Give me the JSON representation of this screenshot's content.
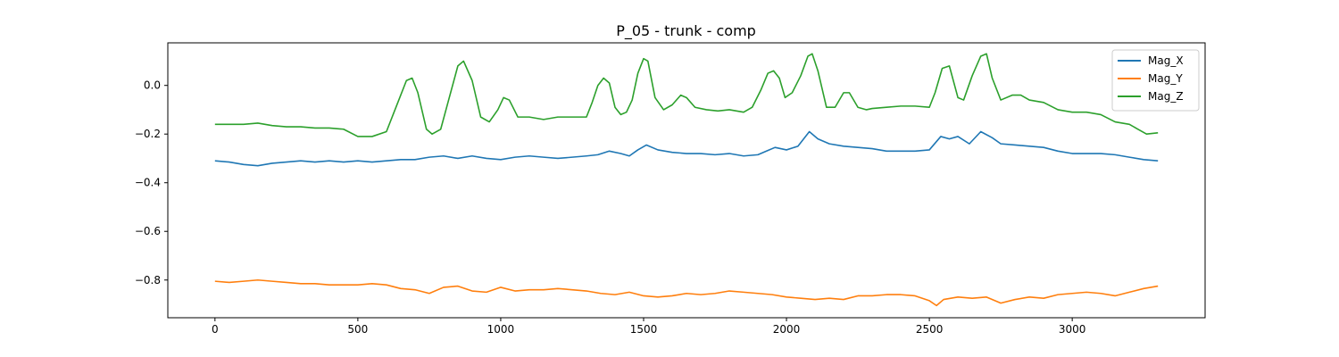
{
  "chart_data": {
    "type": "line",
    "title": "P_05 - trunk - comp",
    "xlabel": "",
    "ylabel": "",
    "xlim": [
      -165,
      3465
    ],
    "ylim": [
      -0.955,
      0.175
    ],
    "x_ticks": [
      0,
      500,
      1000,
      1500,
      2000,
      2500,
      3000
    ],
    "y_ticks": [
      -0.8,
      -0.6,
      -0.4,
      -0.2,
      0.0
    ],
    "x_tick_labels": [
      "0",
      "500",
      "1000",
      "1500",
      "2000",
      "2500",
      "3000"
    ],
    "y_tick_labels": [
      "−0.8",
      "−0.6",
      "−0.4",
      "−0.2",
      "0.0"
    ],
    "grid": false,
    "legend": "top-right",
    "series": [
      {
        "name": "Mag_X",
        "color": "#1f77b4",
        "x": [
          0,
          50,
          100,
          150,
          200,
          250,
          300,
          350,
          400,
          450,
          500,
          550,
          600,
          650,
          700,
          750,
          800,
          850,
          900,
          950,
          1000,
          1050,
          1100,
          1150,
          1200,
          1250,
          1300,
          1340,
          1380,
          1420,
          1450,
          1480,
          1510,
          1550,
          1600,
          1650,
          1700,
          1750,
          1800,
          1850,
          1900,
          1930,
          1960,
          2000,
          2040,
          2080,
          2110,
          2150,
          2200,
          2250,
          2300,
          2350,
          2400,
          2450,
          2500,
          2540,
          2570,
          2600,
          2640,
          2680,
          2720,
          2750,
          2800,
          2850,
          2900,
          2950,
          3000,
          3050,
          3100,
          3150,
          3200,
          3250,
          3300
        ],
        "y": [
          -0.31,
          -0.315,
          -0.325,
          -0.33,
          -0.32,
          -0.315,
          -0.31,
          -0.315,
          -0.31,
          -0.315,
          -0.31,
          -0.315,
          -0.31,
          -0.305,
          -0.305,
          -0.295,
          -0.29,
          -0.3,
          -0.29,
          -0.3,
          -0.305,
          -0.295,
          -0.29,
          -0.295,
          -0.3,
          -0.295,
          -0.29,
          -0.285,
          -0.27,
          -0.28,
          -0.29,
          -0.265,
          -0.245,
          -0.265,
          -0.275,
          -0.28,
          -0.28,
          -0.285,
          -0.28,
          -0.29,
          -0.285,
          -0.27,
          -0.255,
          -0.265,
          -0.25,
          -0.19,
          -0.22,
          -0.24,
          -0.25,
          -0.255,
          -0.26,
          -0.27,
          -0.27,
          -0.27,
          -0.265,
          -0.21,
          -0.22,
          -0.21,
          -0.24,
          -0.19,
          -0.215,
          -0.24,
          -0.245,
          -0.25,
          -0.255,
          -0.27,
          -0.28,
          -0.28,
          -0.28,
          -0.285,
          -0.295,
          -0.305,
          -0.31
        ]
      },
      {
        "name": "Mag_Y",
        "color": "#ff7f0e",
        "x": [
          0,
          50,
          100,
          150,
          200,
          250,
          300,
          350,
          400,
          450,
          500,
          550,
          600,
          650,
          700,
          750,
          800,
          850,
          900,
          950,
          1000,
          1050,
          1100,
          1150,
          1200,
          1250,
          1300,
          1350,
          1400,
          1450,
          1500,
          1550,
          1600,
          1650,
          1700,
          1750,
          1800,
          1850,
          1900,
          1950,
          2000,
          2050,
          2100,
          2150,
          2200,
          2250,
          2300,
          2350,
          2400,
          2450,
          2500,
          2525,
          2550,
          2600,
          2650,
          2700,
          2750,
          2800,
          2850,
          2900,
          2950,
          3000,
          3050,
          3100,
          3150,
          3200,
          3250,
          3300
        ],
        "y": [
          -0.805,
          -0.81,
          -0.805,
          -0.8,
          -0.805,
          -0.81,
          -0.815,
          -0.815,
          -0.82,
          -0.82,
          -0.82,
          -0.815,
          -0.82,
          -0.835,
          -0.84,
          -0.855,
          -0.83,
          -0.825,
          -0.845,
          -0.85,
          -0.83,
          -0.845,
          -0.84,
          -0.84,
          -0.835,
          -0.84,
          -0.845,
          -0.855,
          -0.86,
          -0.85,
          -0.865,
          -0.87,
          -0.865,
          -0.855,
          -0.86,
          -0.855,
          -0.845,
          -0.85,
          -0.855,
          -0.86,
          -0.87,
          -0.875,
          -0.88,
          -0.875,
          -0.88,
          -0.865,
          -0.865,
          -0.86,
          -0.86,
          -0.865,
          -0.885,
          -0.905,
          -0.88,
          -0.87,
          -0.875,
          -0.87,
          -0.895,
          -0.88,
          -0.87,
          -0.875,
          -0.86,
          -0.855,
          -0.85,
          -0.855,
          -0.865,
          -0.85,
          -0.835,
          -0.825
        ]
      },
      {
        "name": "Mag_Z",
        "color": "#2ca02c",
        "x": [
          0,
          50,
          100,
          150,
          200,
          250,
          300,
          350,
          400,
          450,
          500,
          550,
          600,
          640,
          670,
          690,
          710,
          740,
          760,
          790,
          820,
          850,
          870,
          900,
          930,
          960,
          990,
          1010,
          1030,
          1060,
          1100,
          1150,
          1200,
          1250,
          1300,
          1320,
          1340,
          1360,
          1380,
          1400,
          1420,
          1440,
          1460,
          1480,
          1500,
          1515,
          1540,
          1570,
          1600,
          1630,
          1650,
          1680,
          1720,
          1760,
          1800,
          1850,
          1880,
          1910,
          1935,
          1955,
          1975,
          1995,
          2020,
          2050,
          2075,
          2090,
          2110,
          2140,
          2170,
          2200,
          2220,
          2250,
          2280,
          2300,
          2350,
          2400,
          2450,
          2500,
          2520,
          2545,
          2570,
          2600,
          2620,
          2650,
          2680,
          2700,
          2720,
          2750,
          2790,
          2820,
          2850,
          2900,
          2950,
          3000,
          3050,
          3100,
          3150,
          3200,
          3230,
          3260,
          3300
        ],
        "y": [
          -0.16,
          -0.16,
          -0.16,
          -0.155,
          -0.165,
          -0.17,
          -0.17,
          -0.175,
          -0.175,
          -0.18,
          -0.21,
          -0.21,
          -0.19,
          -0.07,
          0.02,
          0.03,
          -0.03,
          -0.18,
          -0.2,
          -0.18,
          -0.05,
          0.08,
          0.1,
          0.02,
          -0.13,
          -0.15,
          -0.1,
          -0.05,
          -0.06,
          -0.13,
          -0.13,
          -0.14,
          -0.13,
          -0.13,
          -0.13,
          -0.07,
          0.0,
          0.03,
          0.01,
          -0.09,
          -0.12,
          -0.11,
          -0.06,
          0.05,
          0.11,
          0.1,
          -0.05,
          -0.1,
          -0.08,
          -0.04,
          -0.05,
          -0.09,
          -0.1,
          -0.105,
          -0.1,
          -0.11,
          -0.09,
          -0.02,
          0.05,
          0.06,
          0.03,
          -0.05,
          -0.03,
          0.04,
          0.12,
          0.13,
          0.06,
          -0.09,
          -0.09,
          -0.03,
          -0.03,
          -0.09,
          -0.1,
          -0.095,
          -0.09,
          -0.085,
          -0.085,
          -0.09,
          -0.03,
          0.07,
          0.08,
          -0.05,
          -0.06,
          0.04,
          0.12,
          0.13,
          0.03,
          -0.06,
          -0.04,
          -0.04,
          -0.06,
          -0.07,
          -0.1,
          -0.11,
          -0.11,
          -0.12,
          -0.15,
          -0.16,
          -0.18,
          -0.2,
          -0.195
        ]
      }
    ]
  }
}
